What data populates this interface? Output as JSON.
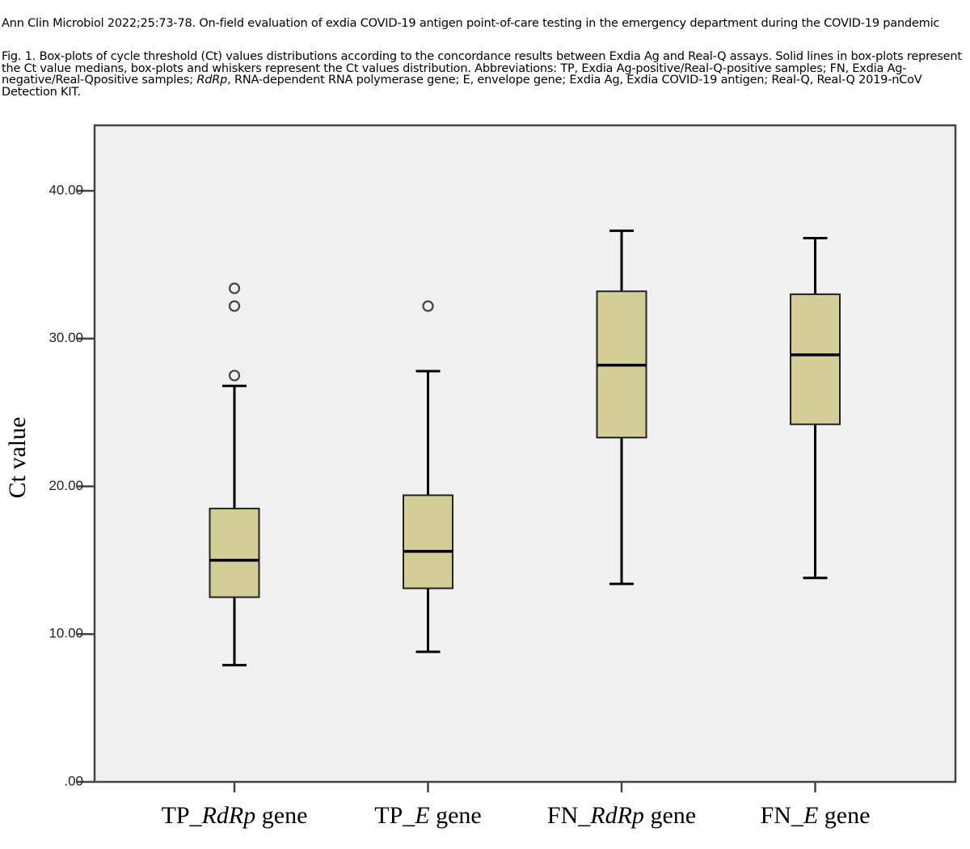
{
  "header": {
    "source_line": "Ann Clin Microbiol 2022;25:73-78. On-field evaluation of exdia COVID-19 antigen point-of-care testing in the emergency department during the COVID-19 pandemic"
  },
  "caption": {
    "part1": "Fig. 1. Box-plots of cycle threshold (Ct) values distributions according to the concordance results between Exdia Ag and Real-Q assays. Solid lines in box-plots represent the Ct value medians, box-plots and whiskers represent the Ct values distribution. Abbreviations: TP, Exdia Ag-positive/Real-Q-positive samples; FN, Exdia Ag-negative/Real-Qpositive samples; ",
    "italic": "RdRp",
    "part2": ", RNA-dependent RNA polymerase gene; E, envelope gene; Exdia Ag, Exdia COVID-19 antigen; Real-Q, Real-Q 2019-nCoV Detection KIT."
  },
  "colors": {
    "plot_background": "#f0f0f0",
    "box_fill": "#d3ce98",
    "line": "#000000",
    "axis": "#444444"
  },
  "chart_data": {
    "type": "boxplot",
    "title": "",
    "xlabel": "",
    "ylabel": "Ct value",
    "ylim": [
      0,
      44.5
    ],
    "grid": false,
    "legend": "none",
    "y_ticks": [
      0,
      10,
      20,
      30,
      40
    ],
    "y_tick_labels": [
      ".00",
      "10.00",
      "20.00",
      "30.00",
      "40.00"
    ],
    "categories": [
      {
        "prefix": "TP_",
        "italic": "RdRp",
        "suffix": " gene"
      },
      {
        "prefix": "TP_",
        "italic": "E",
        "suffix": " gene"
      },
      {
        "prefix": "FN_",
        "italic": "RdRp",
        "suffix": " gene"
      },
      {
        "prefix": "FN_",
        "italic": "E",
        "suffix": " gene"
      }
    ],
    "series": [
      {
        "name": "TP_RdRp gene",
        "whisker_low": 7.9,
        "q1": 12.5,
        "median": 15.0,
        "q3": 18.5,
        "whisker_high": 26.8,
        "outliers": [
          27.5,
          32.2,
          33.4
        ]
      },
      {
        "name": "TP_E gene",
        "whisker_low": 8.8,
        "q1": 13.1,
        "median": 15.6,
        "q3": 19.4,
        "whisker_high": 27.8,
        "outliers": [
          32.2
        ]
      },
      {
        "name": "FN_RdRp gene",
        "whisker_low": 13.4,
        "q1": 23.3,
        "median": 28.2,
        "q3": 33.2,
        "whisker_high": 37.3,
        "outliers": []
      },
      {
        "name": "FN_E gene",
        "whisker_low": 13.8,
        "q1": 24.2,
        "median": 28.9,
        "q3": 33.0,
        "whisker_high": 36.8,
        "outliers": []
      }
    ]
  }
}
